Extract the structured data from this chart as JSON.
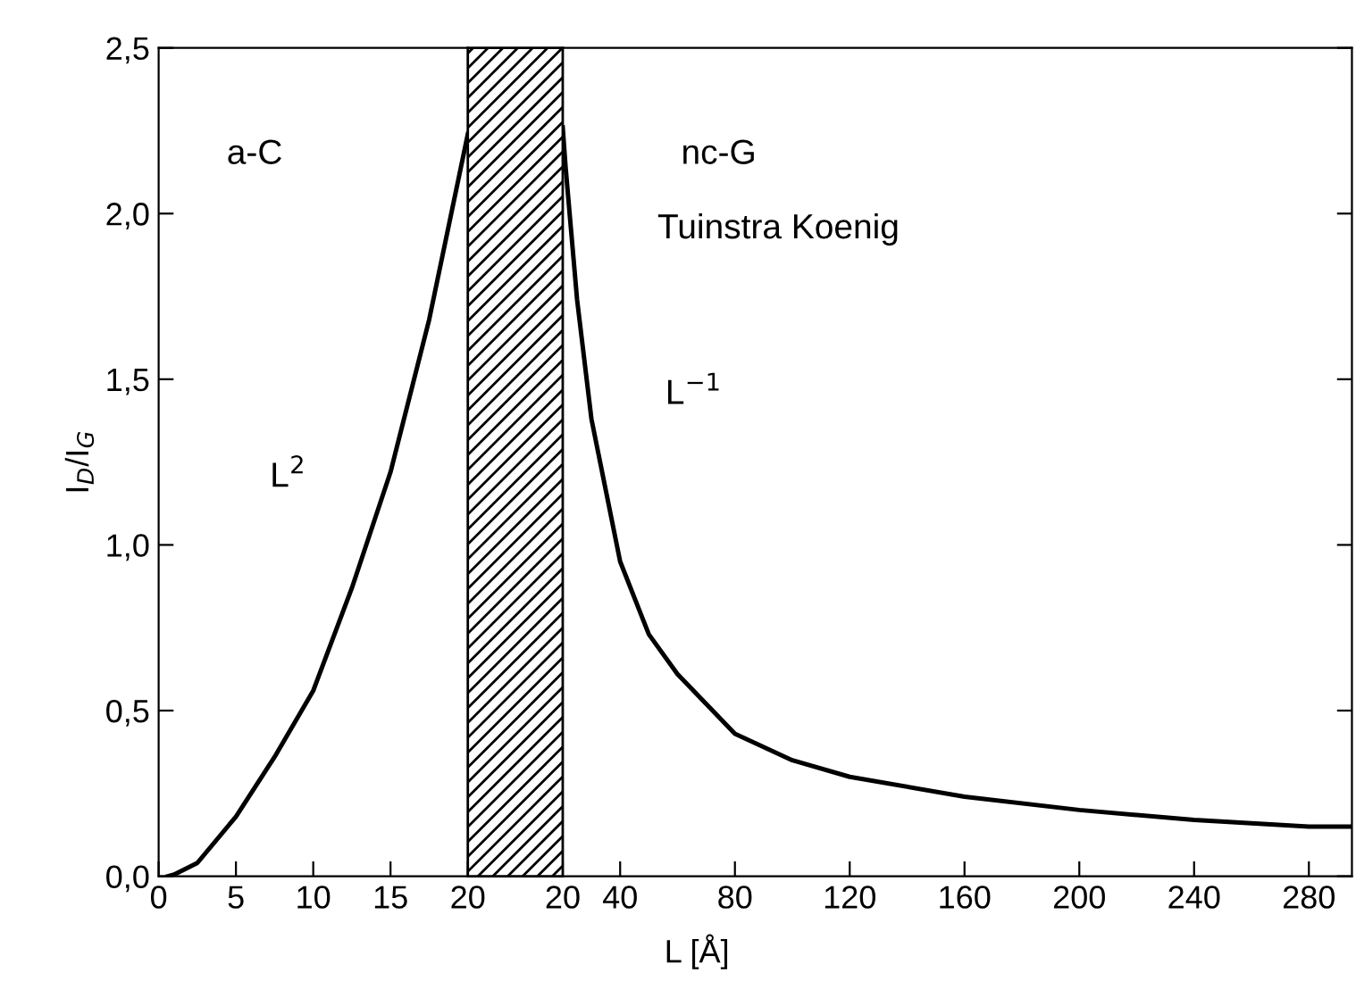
{
  "chart_data": [
    {
      "type": "line",
      "ylabel": "I$_{D}$/I$_{G}$",
      "x": [
        0.6,
        1,
        2.5,
        5,
        7.5,
        10,
        12.5,
        15,
        17.5,
        20
      ],
      "series": [
        {
          "color": "#000000",
          "values": [
            0,
            0.005,
            0.04,
            0.18,
            0.36,
            0.56,
            0.87,
            1.22,
            1.68,
            2.24
          ]
        }
      ],
      "xlim": [
        0,
        20
      ],
      "xticks": [
        0,
        5,
        10,
        15,
        20
      ],
      "ylim": [
        0,
        2.5
      ],
      "yticks": [
        {
          "value": 0,
          "label": "0,0"
        },
        {
          "value": 0.5,
          "label": "0,5"
        },
        {
          "value": 1,
          "label": "1,0"
        },
        {
          "value": 1.5,
          "label": "1,5"
        },
        {
          "value": 2,
          "label": "2,0"
        },
        {
          "value": 2.5,
          "label": "2,5"
        }
      ],
      "annotations": [
        "a-C",
        "L$^{2}$"
      ],
      "grid": false,
      "legend": false
    },
    {
      "type": "line",
      "xlabel": "L [Å]",
      "x": [
        20,
        21,
        25,
        30,
        40,
        50,
        60,
        80,
        100,
        120,
        160,
        200,
        240,
        280,
        295
      ],
      "series": [
        {
          "color": "#000000",
          "values": [
            2.26,
            2.14,
            1.74,
            1.38,
            0.95,
            0.73,
            0.61,
            0.43,
            0.35,
            0.3,
            0.24,
            0.2,
            0.17,
            0.15,
            0.15
          ]
        }
      ],
      "xlim": [
        20,
        295
      ],
      "xticks": [
        20,
        40,
        80,
        120,
        160,
        200,
        240,
        280
      ],
      "ylim": [
        0,
        2.5
      ],
      "yticks": [
        {
          "value": 0,
          "label": null
        },
        {
          "value": 0.5,
          "label": null
        },
        {
          "value": 1,
          "label": null
        },
        {
          "value": 1.5,
          "label": null
        },
        {
          "value": 2,
          "label": null
        },
        {
          "value": 2.5,
          "label": null
        }
      ],
      "tick_labels": "x",
      "annotations": [
        "nc-G",
        "Tuinstra Koenig",
        "L$^{−1}$"
      ],
      "grid": false,
      "legend": false
    }
  ]
}
